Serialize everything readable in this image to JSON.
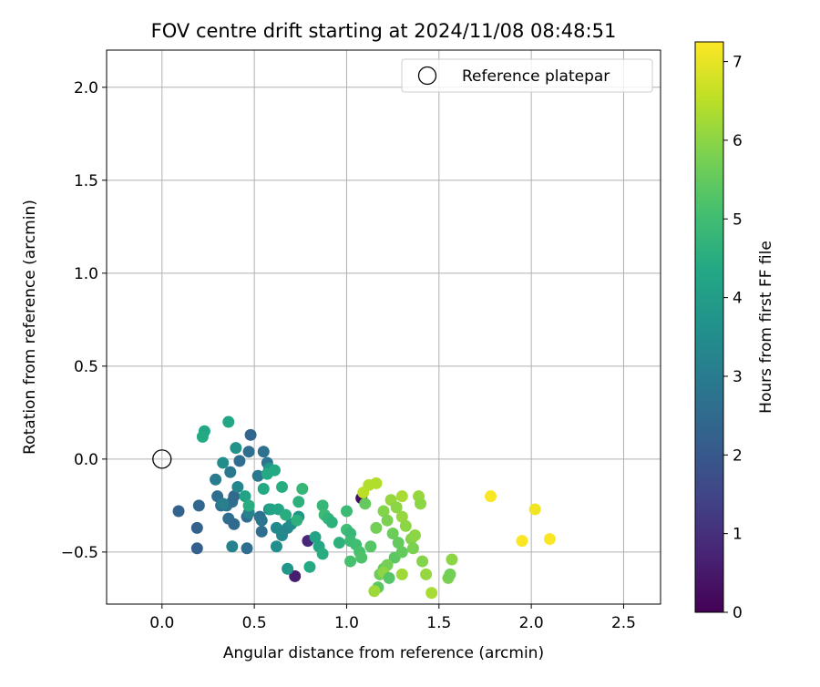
{
  "chart_data": {
    "type": "scatter",
    "title": "FOV centre drift starting at 2024/11/08 08:48:51",
    "xlabel": "Angular distance from reference (arcmin)",
    "ylabel": "Rotation from reference (arcmin)",
    "xlim": [
      -0.3,
      2.7
    ],
    "ylim": [
      -0.78,
      2.2
    ],
    "xticks": [
      0.0,
      0.5,
      1.0,
      1.5,
      2.0,
      2.5
    ],
    "xtick_labels": [
      "0.0",
      "0.5",
      "1.0",
      "1.5",
      "2.0",
      "2.5"
    ],
    "yticks": [
      -0.5,
      0.0,
      0.5,
      1.0,
      1.5,
      2.0
    ],
    "ytick_labels": [
      "−0.5",
      "0.0",
      "0.5",
      "1.0",
      "1.5",
      "2.0"
    ],
    "grid": true,
    "legend": {
      "placement": "top-right",
      "entries": [
        "Reference platepar"
      ]
    },
    "reference_point": {
      "x": 0.0,
      "y": 0.0,
      "label": "Reference platepar"
    },
    "colorbar": {
      "label": "Hours from first FF file",
      "range": [
        0,
        7.25
      ],
      "ticks": [
        0,
        1,
        2,
        3,
        4,
        5,
        6,
        7
      ],
      "tick_labels": [
        "0",
        "1",
        "2",
        "3",
        "4",
        "5",
        "6",
        "7"
      ],
      "colormap": "viridis"
    },
    "points": [
      {
        "x": 1.08,
        "y": -0.21,
        "h": 0.2
      },
      {
        "x": 0.72,
        "y": -0.63,
        "h": 0.6
      },
      {
        "x": 0.79,
        "y": -0.44,
        "h": 0.8
      },
      {
        "x": 0.09,
        "y": -0.28,
        "h": 2.3
      },
      {
        "x": 0.19,
        "y": -0.37,
        "h": 2.3
      },
      {
        "x": 0.19,
        "y": -0.48,
        "h": 2.2
      },
      {
        "x": 0.2,
        "y": -0.25,
        "h": 2.4
      },
      {
        "x": 0.3,
        "y": -0.2,
        "h": 2.6
      },
      {
        "x": 0.32,
        "y": -0.25,
        "h": 2.6
      },
      {
        "x": 0.35,
        "y": -0.25,
        "h": 2.8
      },
      {
        "x": 0.36,
        "y": -0.32,
        "h": 2.6
      },
      {
        "x": 0.39,
        "y": -0.35,
        "h": 2.5
      },
      {
        "x": 0.38,
        "y": -0.23,
        "h": 2.6
      },
      {
        "x": 0.39,
        "y": -0.2,
        "h": 2.5
      },
      {
        "x": 0.37,
        "y": -0.07,
        "h": 2.9
      },
      {
        "x": 0.42,
        "y": -0.01,
        "h": 2.6
      },
      {
        "x": 0.47,
        "y": 0.04,
        "h": 2.6
      },
      {
        "x": 0.48,
        "y": 0.13,
        "h": 2.4
      },
      {
        "x": 0.46,
        "y": -0.31,
        "h": 2.6
      },
      {
        "x": 0.46,
        "y": -0.48,
        "h": 2.6
      },
      {
        "x": 0.55,
        "y": 0.04,
        "h": 2.7
      },
      {
        "x": 0.57,
        "y": -0.02,
        "h": 2.8
      },
      {
        "x": 0.52,
        "y": -0.09,
        "h": 2.9
      },
      {
        "x": 0.53,
        "y": -0.31,
        "h": 2.7
      },
      {
        "x": 0.54,
        "y": -0.33,
        "h": 2.8
      },
      {
        "x": 0.54,
        "y": -0.39,
        "h": 2.6
      },
      {
        "x": 0.29,
        "y": -0.11,
        "h": 3.0
      },
      {
        "x": 0.33,
        "y": -0.02,
        "h": 3.5
      },
      {
        "x": 0.33,
        "y": -0.24,
        "h": 3.1
      },
      {
        "x": 0.38,
        "y": -0.47,
        "h": 3.2
      },
      {
        "x": 0.4,
        "y": 0.06,
        "h": 3.7
      },
      {
        "x": 0.41,
        "y": -0.15,
        "h": 3.3
      },
      {
        "x": 0.47,
        "y": -0.29,
        "h": 3.2
      },
      {
        "x": 0.58,
        "y": -0.05,
        "h": 3.8
      },
      {
        "x": 0.58,
        "y": -0.27,
        "h": 3.7
      },
      {
        "x": 0.62,
        "y": -0.37,
        "h": 3.4
      },
      {
        "x": 0.62,
        "y": -0.47,
        "h": 3.6
      },
      {
        "x": 0.65,
        "y": -0.41,
        "h": 3.4
      },
      {
        "x": 0.68,
        "y": -0.37,
        "h": 3.3
      },
      {
        "x": 0.7,
        "y": -0.35,
        "h": 3.5
      },
      {
        "x": 0.74,
        "y": -0.31,
        "h": 3.8
      },
      {
        "x": 0.68,
        "y": -0.59,
        "h": 3.8
      },
      {
        "x": 0.23,
        "y": 0.15,
        "h": 4.3
      },
      {
        "x": 0.22,
        "y": 0.12,
        "h": 4.4
      },
      {
        "x": 0.36,
        "y": 0.2,
        "h": 4.3
      },
      {
        "x": 0.45,
        "y": -0.2,
        "h": 4.2
      },
      {
        "x": 0.47,
        "y": -0.25,
        "h": 4.5
      },
      {
        "x": 0.55,
        "y": -0.16,
        "h": 4.4
      },
      {
        "x": 0.57,
        "y": -0.08,
        "h": 4.4
      },
      {
        "x": 0.61,
        "y": -0.06,
        "h": 4.4
      },
      {
        "x": 0.59,
        "y": -0.27,
        "h": 4.2
      },
      {
        "x": 0.63,
        "y": -0.27,
        "h": 4.3
      },
      {
        "x": 0.65,
        "y": -0.15,
        "h": 4.5
      },
      {
        "x": 0.67,
        "y": -0.3,
        "h": 4.5
      },
      {
        "x": 0.74,
        "y": -0.23,
        "h": 4.6
      },
      {
        "x": 0.76,
        "y": -0.16,
        "h": 4.8
      },
      {
        "x": 0.73,
        "y": -0.33,
        "h": 4.6
      },
      {
        "x": 0.8,
        "y": -0.58,
        "h": 4.4
      },
      {
        "x": 0.83,
        "y": -0.42,
        "h": 4.2
      },
      {
        "x": 0.85,
        "y": -0.47,
        "h": 4.3
      },
      {
        "x": 0.87,
        "y": -0.51,
        "h": 4.5
      },
      {
        "x": 0.87,
        "y": -0.25,
        "h": 4.8
      },
      {
        "x": 0.88,
        "y": -0.3,
        "h": 4.9
      },
      {
        "x": 0.9,
        "y": -0.32,
        "h": 4.7
      },
      {
        "x": 0.92,
        "y": -0.34,
        "h": 4.6
      },
      {
        "x": 0.96,
        "y": -0.45,
        "h": 4.6
      },
      {
        "x": 1.0,
        "y": -0.28,
        "h": 4.9
      },
      {
        "x": 1.0,
        "y": -0.38,
        "h": 5.0
      },
      {
        "x": 1.02,
        "y": -0.4,
        "h": 4.8
      },
      {
        "x": 1.02,
        "y": -0.44,
        "h": 4.9
      },
      {
        "x": 1.05,
        "y": -0.46,
        "h": 5.0
      },
      {
        "x": 1.02,
        "y": -0.55,
        "h": 5.1
      },
      {
        "x": 1.07,
        "y": -0.5,
        "h": 5.1
      },
      {
        "x": 1.08,
        "y": -0.53,
        "h": 5.2
      },
      {
        "x": 1.1,
        "y": -0.24,
        "h": 5.5
      },
      {
        "x": 1.13,
        "y": -0.47,
        "h": 5.3
      },
      {
        "x": 1.16,
        "y": -0.37,
        "h": 5.7
      },
      {
        "x": 1.17,
        "y": -0.69,
        "h": 5.4
      },
      {
        "x": 1.18,
        "y": -0.62,
        "h": 5.6
      },
      {
        "x": 1.2,
        "y": -0.59,
        "h": 5.5
      },
      {
        "x": 1.2,
        "y": -0.28,
        "h": 5.9
      },
      {
        "x": 1.22,
        "y": -0.33,
        "h": 5.8
      },
      {
        "x": 1.25,
        "y": -0.4,
        "h": 5.6
      },
      {
        "x": 1.26,
        "y": -0.53,
        "h": 5.4
      },
      {
        "x": 1.28,
        "y": -0.45,
        "h": 5.5
      },
      {
        "x": 1.3,
        "y": -0.5,
        "h": 5.5
      },
      {
        "x": 1.22,
        "y": -0.57,
        "h": 5.7
      },
      {
        "x": 1.24,
        "y": -0.22,
        "h": 6.1
      },
      {
        "x": 1.27,
        "y": -0.26,
        "h": 6.0
      },
      {
        "x": 1.3,
        "y": -0.31,
        "h": 6.1
      },
      {
        "x": 1.32,
        "y": -0.36,
        "h": 6.0
      },
      {
        "x": 1.35,
        "y": -0.43,
        "h": 5.9
      },
      {
        "x": 1.36,
        "y": -0.48,
        "h": 5.8
      },
      {
        "x": 1.37,
        "y": -0.41,
        "h": 6.0
      },
      {
        "x": 1.39,
        "y": -0.2,
        "h": 6.1
      },
      {
        "x": 1.4,
        "y": -0.24,
        "h": 6.0
      },
      {
        "x": 1.3,
        "y": -0.2,
        "h": 6.3
      },
      {
        "x": 1.3,
        "y": -0.62,
        "h": 6.2
      },
      {
        "x": 1.41,
        "y": -0.55,
        "h": 5.9
      },
      {
        "x": 1.43,
        "y": -0.62,
        "h": 6.1
      },
      {
        "x": 1.46,
        "y": -0.72,
        "h": 6.3
      },
      {
        "x": 1.55,
        "y": -0.64,
        "h": 5.8
      },
      {
        "x": 1.56,
        "y": -0.62,
        "h": 5.7
      },
      {
        "x": 1.57,
        "y": -0.54,
        "h": 6.0
      },
      {
        "x": 1.15,
        "y": -0.71,
        "h": 6.2
      },
      {
        "x": 1.12,
        "y": -0.14,
        "h": 6.4
      },
      {
        "x": 1.16,
        "y": -0.13,
        "h": 6.4
      },
      {
        "x": 1.09,
        "y": -0.18,
        "h": 6.5
      },
      {
        "x": 1.2,
        "y": -0.61,
        "h": 6.0
      },
      {
        "x": 1.23,
        "y": -0.64,
        "h": 5.3
      },
      {
        "x": 1.78,
        "y": -0.2,
        "h": 7.2
      },
      {
        "x": 2.02,
        "y": -0.27,
        "h": 7.1
      },
      {
        "x": 1.95,
        "y": -0.44,
        "h": 7.2
      },
      {
        "x": 2.1,
        "y": -0.43,
        "h": 7.2
      }
    ]
  }
}
